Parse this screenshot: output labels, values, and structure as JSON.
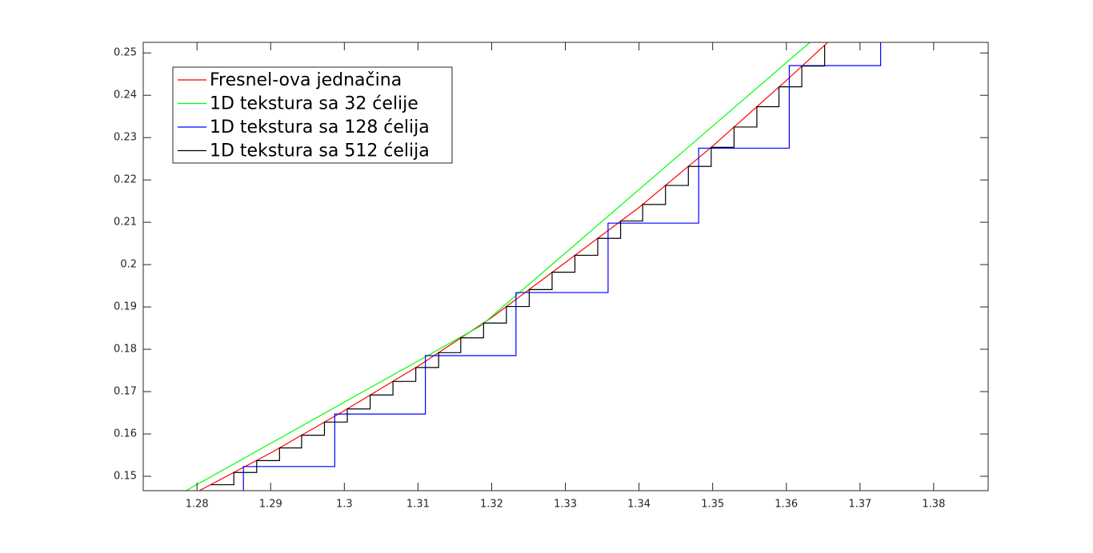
{
  "chart_data": {
    "type": "line",
    "xlim": [
      1.2727,
      1.3874
    ],
    "ylim": [
      0.1466,
      0.2525
    ],
    "xticks": [
      1.28,
      1.29,
      1.3,
      1.31,
      1.32,
      1.33,
      1.34,
      1.35,
      1.36,
      1.37,
      1.38
    ],
    "yticks": [
      0.15,
      0.16,
      0.17,
      0.18,
      0.19,
      0.2,
      0.21,
      0.22,
      0.23,
      0.24,
      0.25
    ],
    "grid": false,
    "legend": "upper left",
    "series": [
      {
        "name": "Fresnel-ova jednačina",
        "color": "#ff0000",
        "step": false,
        "x": [
          1.28,
          1.29,
          1.3,
          1.31,
          1.32,
          1.33,
          1.34,
          1.35,
          1.36,
          1.37
        ],
        "values": [
          0.1463,
          0.1555,
          0.1655,
          0.176,
          0.1875,
          0.2005,
          0.2135,
          0.228,
          0.2435,
          0.2595
        ]
      },
      {
        "name": "1D tekstura sa 32 ćelije",
        "color": "#00ff00",
        "step": false,
        "x": [
          1.2785,
          1.3185,
          1.3632
        ],
        "values": [
          0.1466,
          0.1855,
          0.2525
        ]
      },
      {
        "name": "1D tekstura sa 128 ćelija",
        "color": "#0000ff",
        "step": true,
        "x": [
          1.2739,
          1.2863,
          1.2987,
          1.311,
          1.3233,
          1.3358,
          1.3481,
          1.3604,
          1.3728
        ],
        "values": [
          0.1405,
          0.1523,
          0.1647,
          0.1785,
          0.1934,
          0.2098,
          0.2275,
          0.247,
          0.268
        ]
      },
      {
        "name": "1D tekstura sa 512 ćelija",
        "color": "#000000",
        "step": true,
        "x": [
          1.2819,
          1.285,
          1.2881,
          1.2912,
          1.2942,
          1.2973,
          1.3004,
          1.3035,
          1.3066,
          1.3097,
          1.3128,
          1.3158,
          1.3189,
          1.322,
          1.3251,
          1.3282,
          1.3313,
          1.3344,
          1.3375,
          1.3405,
          1.3436,
          1.3467,
          1.3498,
          1.3529,
          1.356,
          1.359,
          1.3621,
          1.3652
        ],
        "values": [
          0.148,
          0.1509,
          0.1537,
          0.1567,
          0.1597,
          0.1628,
          0.1659,
          0.1692,
          0.1724,
          0.1757,
          0.1792,
          0.1827,
          0.1862,
          0.1901,
          0.1941,
          0.1982,
          0.2022,
          0.2062,
          0.2103,
          0.2142,
          0.2187,
          0.2232,
          0.2277,
          0.2325,
          0.2373,
          0.242,
          0.2469,
          0.2518
        ]
      }
    ]
  }
}
